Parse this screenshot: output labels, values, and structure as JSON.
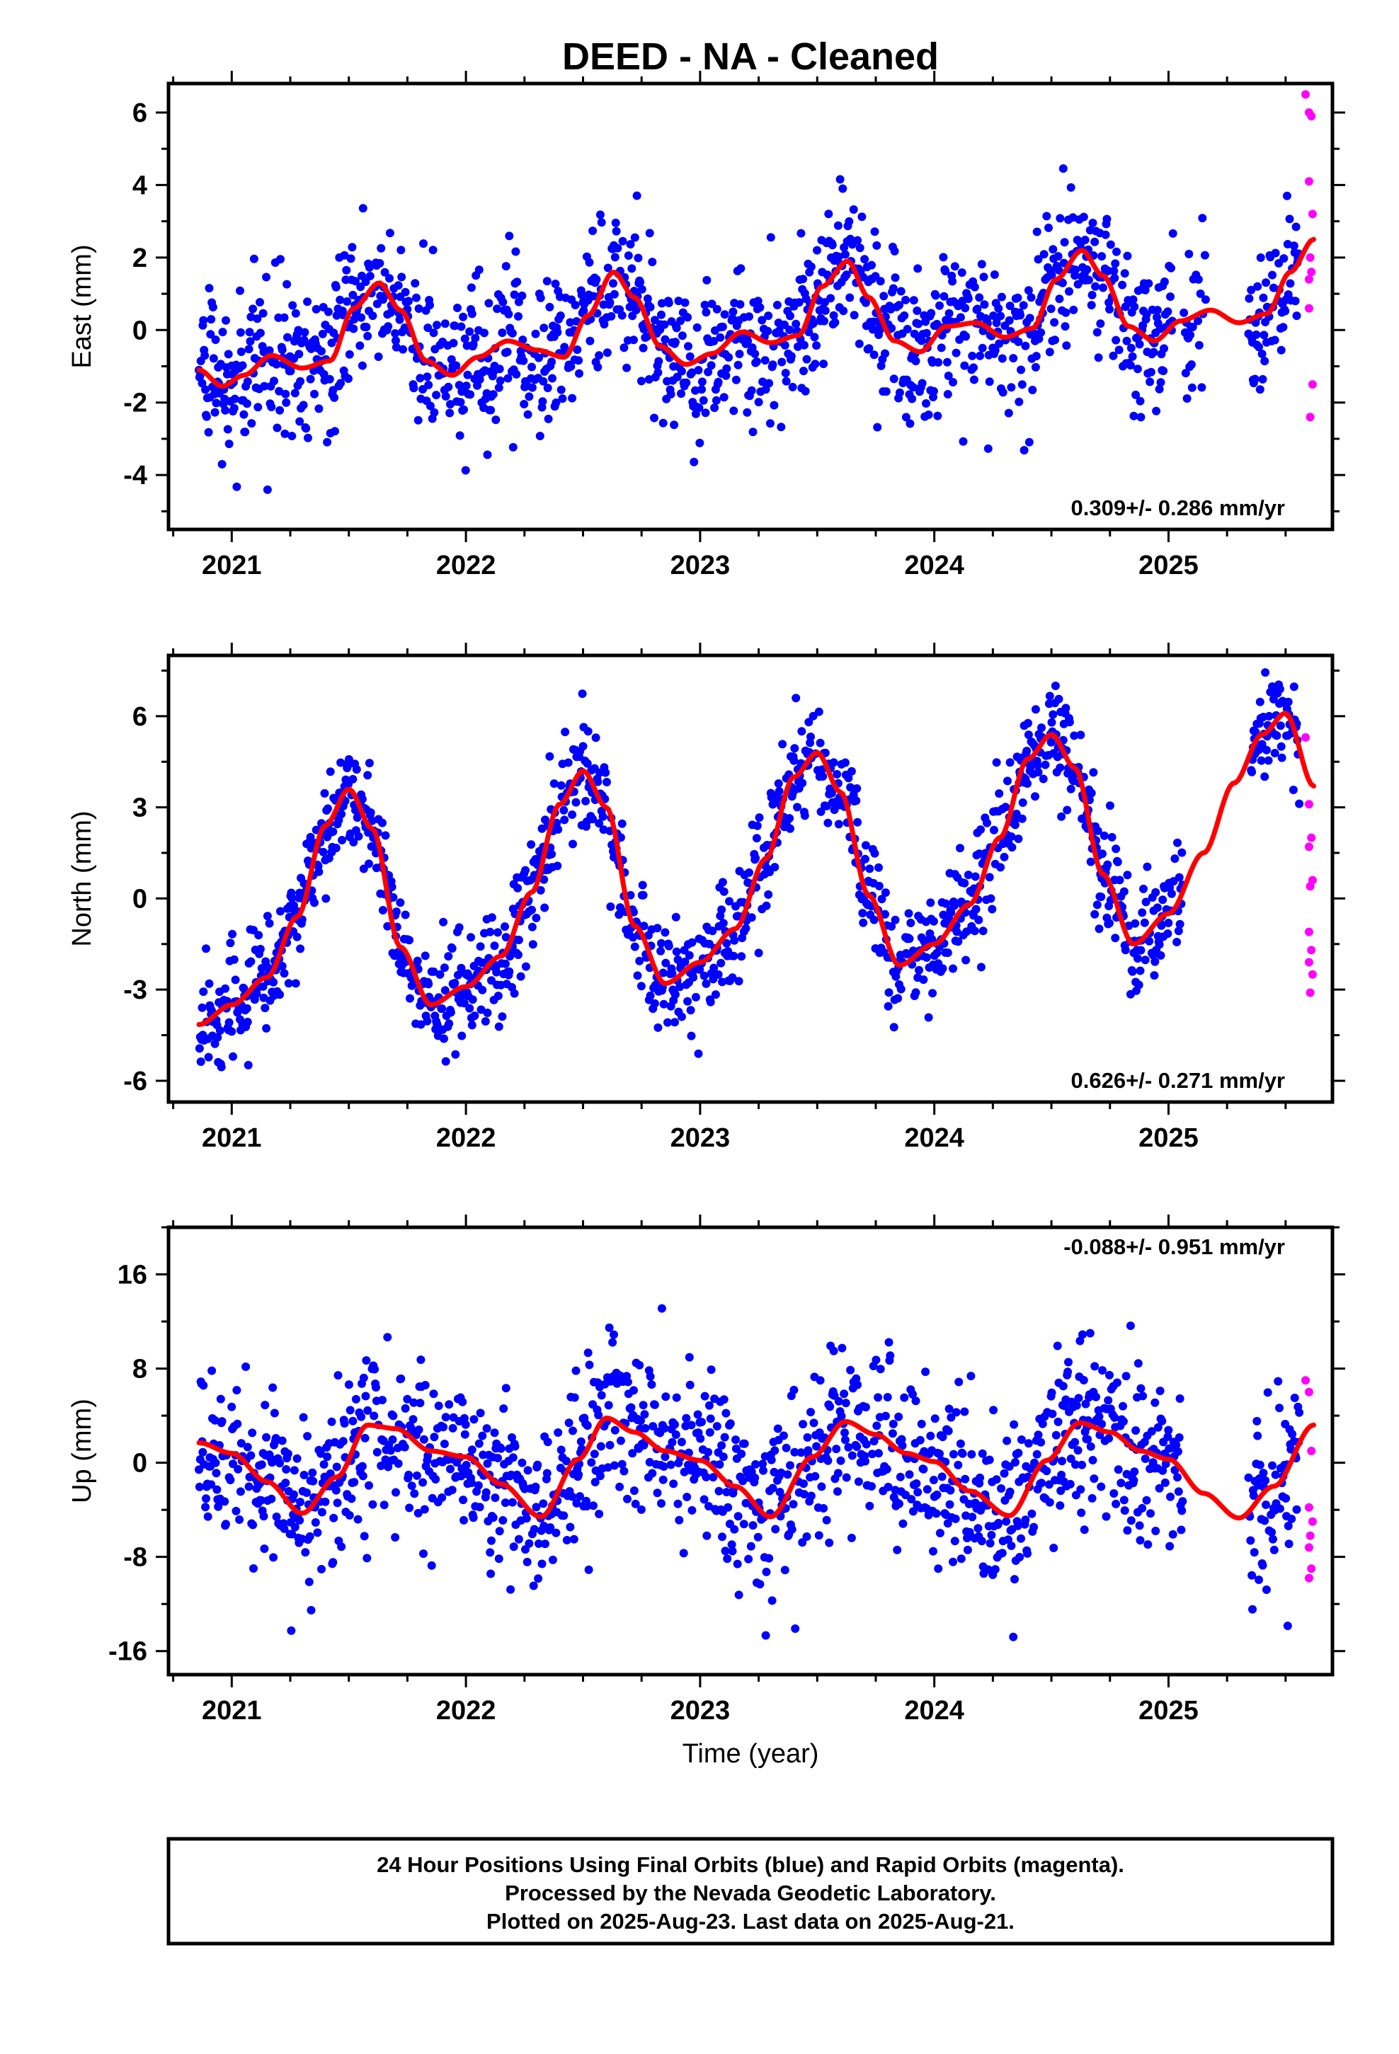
{
  "title": "DEED  - NA - Cleaned",
  "colors": {
    "final_orbits": "#0000ff",
    "rapid_orbits": "#ff00ff",
    "model": "#ff0000"
  },
  "footnote": {
    "line1": "24 Hour Positions Using Final Orbits (blue) and Rapid Orbits (magenta).",
    "line2": "Processed by the Nevada Geodetic Laboratory.",
    "line3": "Plotted on 2025-Aug-23. Last data on 2025-Aug-21."
  },
  "xlabel": "Time (year)",
  "chart_data": [
    {
      "type": "scatter",
      "ylabel": "East (mm)",
      "rate_label": "0.309+/- 0.286 mm/yr",
      "xlim": [
        2020.73,
        2025.7
      ],
      "ylim": [
        -5.5,
        6.8
      ],
      "x_ticks": [
        2021,
        2022,
        2023,
        2024,
        2025
      ],
      "y_ticks": [
        -4,
        -2,
        0,
        2,
        4,
        6
      ],
      "model_curve": {
        "x": [
          2020.86,
          2020.96,
          2021.05,
          2021.17,
          2021.3,
          2021.42,
          2021.52,
          2021.63,
          2021.72,
          2021.83,
          2021.94,
          2022.05,
          2022.18,
          2022.3,
          2022.42,
          2022.52,
          2022.63,
          2022.72,
          2022.83,
          2022.94,
          2023.05,
          2023.18,
          2023.3,
          2023.42,
          2023.52,
          2023.63,
          2023.72,
          2023.83,
          2023.94,
          2024.05,
          2024.18,
          2024.3,
          2024.42,
          2024.52,
          2024.63,
          2024.72,
          2024.83,
          2024.94,
          2025.05,
          2025.18,
          2025.3,
          2025.42,
          2025.52,
          2025.62
        ],
        "y": [
          -1.1,
          -1.55,
          -1.25,
          -0.7,
          -1.05,
          -0.85,
          0.6,
          1.3,
          0.55,
          -0.85,
          -1.25,
          -0.75,
          -0.3,
          -0.55,
          -0.75,
          0.4,
          1.6,
          0.9,
          -0.45,
          -0.95,
          -0.65,
          -0.05,
          -0.35,
          -0.15,
          1.2,
          1.9,
          0.9,
          -0.3,
          -0.6,
          0.1,
          0.2,
          -0.2,
          0.05,
          1.4,
          2.2,
          1.5,
          0.1,
          -0.3,
          0.25,
          0.55,
          0.2,
          0.45,
          1.6,
          2.5
        ]
      },
      "final_series": {
        "x_start": 2020.86,
        "x_end": 2025.56,
        "gaps": [
          [
            2025.02,
            2025.06
          ],
          [
            2025.16,
            2025.34
          ]
        ],
        "scatter_sd": 1.05
      },
      "rapid_series": {
        "x": [
          2025.585,
          2025.6,
          2025.61,
          2025.6,
          2025.615,
          2025.605,
          2025.6,
          2025.61,
          2025.6,
          2025.615,
          2025.605
        ],
        "y": [
          6.5,
          6.0,
          5.9,
          4.1,
          3.2,
          2.0,
          1.4,
          1.6,
          0.6,
          -1.5,
          -2.4
        ]
      }
    },
    {
      "type": "scatter",
      "ylabel": "North (mm)",
      "rate_label": "0.626+/- 0.271 mm/yr",
      "xlim": [
        2020.73,
        2025.7
      ],
      "ylim": [
        -6.7,
        8.0
      ],
      "x_ticks": [
        2021,
        2022,
        2023,
        2024,
        2025
      ],
      "y_ticks": [
        -6,
        -3,
        0,
        3,
        6
      ],
      "model_curve": {
        "x": [
          2020.86,
          2021.0,
          2021.15,
          2021.28,
          2021.4,
          2021.5,
          2021.6,
          2021.72,
          2021.85,
          2022.0,
          2022.15,
          2022.28,
          2022.4,
          2022.5,
          2022.6,
          2022.72,
          2022.85,
          2023.0,
          2023.15,
          2023.28,
          2023.4,
          2023.5,
          2023.6,
          2023.72,
          2023.85,
          2024.0,
          2024.15,
          2024.28,
          2024.4,
          2024.5,
          2024.6,
          2024.72,
          2024.85,
          2025.0,
          2025.15,
          2025.28,
          2025.4,
          2025.5,
          2025.62
        ],
        "y": [
          -4.15,
          -3.5,
          -2.6,
          -0.6,
          2.4,
          3.6,
          2.3,
          -1.6,
          -3.5,
          -2.9,
          -1.9,
          0.2,
          3.1,
          4.2,
          3.0,
          -0.9,
          -2.8,
          -2.1,
          -1.0,
          1.3,
          4.0,
          4.8,
          3.5,
          0.1,
          -2.2,
          -1.5,
          -0.2,
          2.0,
          4.6,
          5.4,
          4.3,
          0.8,
          -1.5,
          -0.5,
          1.5,
          3.8,
          5.4,
          6.1,
          3.7
        ]
      },
      "final_series": {
        "x_start": 2020.86,
        "x_end": 2025.56,
        "gaps": [
          [
            2025.06,
            2025.35
          ]
        ],
        "scatter_sd": 0.95
      },
      "rapid_series": {
        "x": [
          2025.585,
          2025.6,
          2025.61,
          2025.6,
          2025.615,
          2025.605,
          2025.6,
          2025.61,
          2025.6,
          2025.615,
          2025.605
        ],
        "y": [
          5.3,
          3.1,
          2.0,
          1.7,
          0.6,
          0.4,
          -1.1,
          -1.7,
          -2.1,
          -2.5,
          -3.1
        ]
      }
    },
    {
      "type": "scatter",
      "ylabel": "Up (mm)",
      "rate_label": "-0.088+/- 0.951 mm/yr",
      "xlim": [
        2020.73,
        2025.7
      ],
      "ylim": [
        -18.0,
        20.0
      ],
      "x_ticks": [
        2021,
        2022,
        2023,
        2024,
        2025
      ],
      "y_ticks": [
        -16,
        -8,
        0,
        8,
        16
      ],
      "model_curve": {
        "x": [
          2020.86,
          2021.0,
          2021.15,
          2021.3,
          2021.45,
          2021.58,
          2021.7,
          2021.85,
          2022.0,
          2022.15,
          2022.32,
          2022.48,
          2022.6,
          2022.72,
          2022.85,
          2023.0,
          2023.15,
          2023.3,
          2023.48,
          2023.62,
          2023.75,
          2023.88,
          2024.0,
          2024.15,
          2024.32,
          2024.48,
          2024.62,
          2024.75,
          2024.88,
          2025.0,
          2025.15,
          2025.3,
          2025.45,
          2025.62
        ],
        "y": [
          1.7,
          0.8,
          -1.6,
          -4.3,
          -1.2,
          3.2,
          2.9,
          1.0,
          0.5,
          -1.8,
          -4.6,
          0.3,
          3.8,
          2.6,
          1.0,
          0.2,
          -2.0,
          -4.6,
          0.5,
          3.5,
          2.4,
          0.8,
          0.1,
          -2.4,
          -4.5,
          0.2,
          3.4,
          2.6,
          1.0,
          0.3,
          -2.6,
          -4.7,
          -2.0,
          3.2
        ]
      },
      "final_series": {
        "x_start": 2020.86,
        "x_end": 2025.56,
        "gaps": [
          [
            2025.06,
            2025.34
          ]
        ],
        "scatter_sd": 3.7
      },
      "rapid_series": {
        "x": [
          2025.585,
          2025.6,
          2025.61,
          2025.6,
          2025.615,
          2025.605,
          2025.6,
          2025.61,
          2025.6
        ],
        "y": [
          7.0,
          6.0,
          1.0,
          -3.8,
          -5.0,
          -6.2,
          -7.2,
          -9.0,
          -9.8
        ]
      }
    }
  ]
}
